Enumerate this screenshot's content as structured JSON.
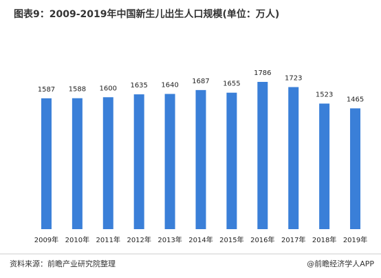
{
  "chart_data": {
    "type": "bar",
    "title": "图表9：2009-2019年中国新生儿出生人口规模(单位：万人)",
    "categories": [
      "2009年",
      "2010年",
      "2011年",
      "2012年",
      "2013年",
      "2014年",
      "2015年",
      "2016年",
      "2017年",
      "2018年",
      "2019年"
    ],
    "values": [
      1587,
      1588,
      1600,
      1635,
      1640,
      1687,
      1655,
      1786,
      1723,
      1523,
      1465
    ],
    "color": "#3a7fd8",
    "source": "资料来源：前瞻产业研究院整理",
    "credit": "@前瞻经济学人APP"
  }
}
